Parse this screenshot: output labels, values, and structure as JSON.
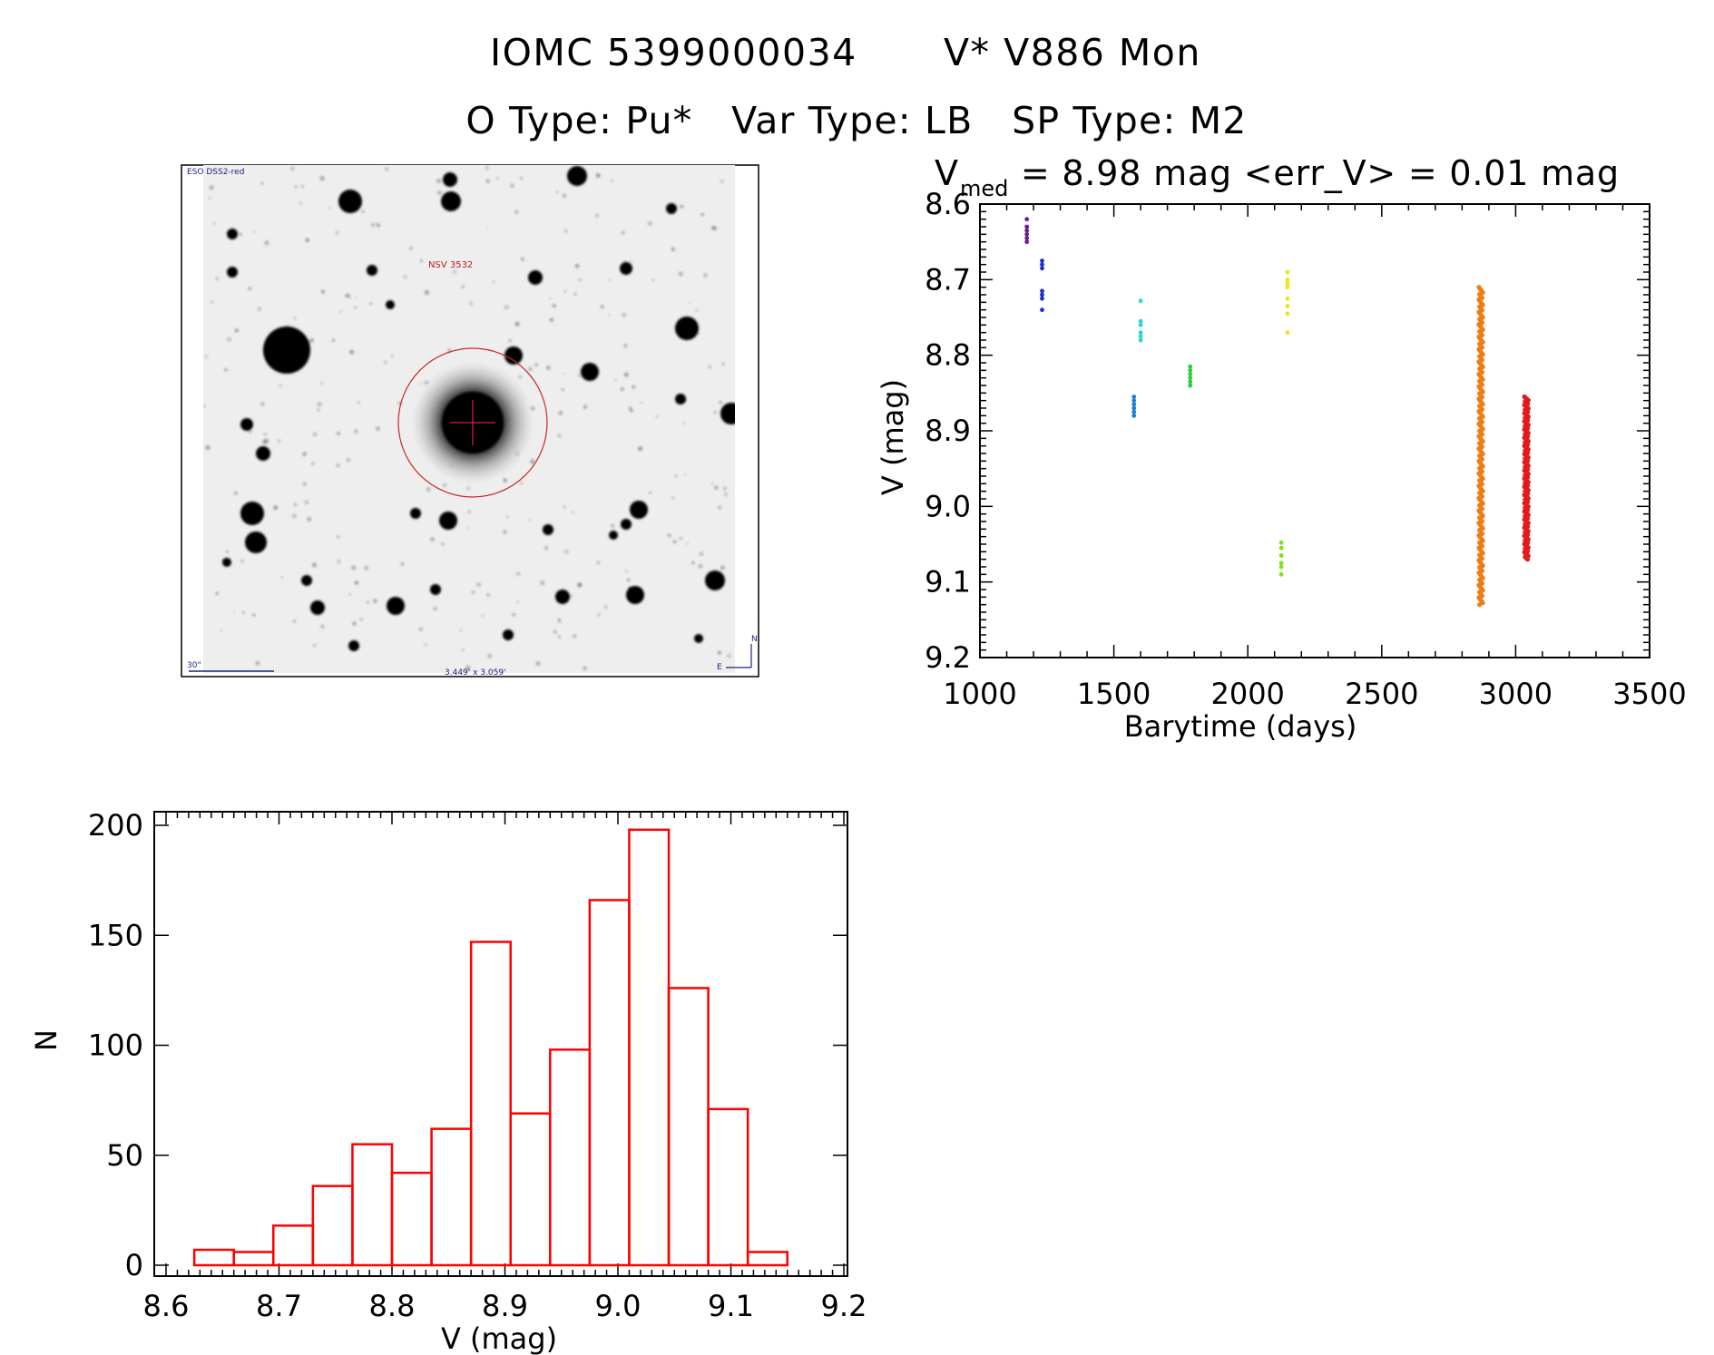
{
  "header": {
    "title_line1_left": "IOMC 5399000034",
    "title_line1_right": "V* V886 Mon",
    "title_line2": "O Type: Pu*   Var Type: LB   SP Type: M2"
  },
  "finder": {
    "survey_label": "ESO DSS2-red",
    "target_label": "NSV 3532",
    "scale_label": "30\"",
    "fov_label": "3.449' x 3.059'",
    "north_label": "N",
    "east_label": "E"
  },
  "chart_data": [
    {
      "type": "scatter",
      "title_prefix": "V",
      "title_sub": "med",
      "title_rest": " = 8.98 mag <err_V> = 0.01 mag",
      "xlabel": "Barytime (days)",
      "ylabel": "V (mag)",
      "xlim": [
        1000,
        3500
      ],
      "ylim": [
        9.2,
        8.6
      ],
      "y_inverted": true,
      "xticks": [
        1000,
        1500,
        2000,
        2500,
        3000,
        3500
      ],
      "yticks": [
        8.6,
        8.7,
        8.8,
        8.9,
        9.0,
        9.1,
        9.2
      ],
      "yticklabels": [
        "8.6",
        "8.7",
        "8.8",
        "8.9",
        "9.0",
        "9.1",
        "9.2"
      ],
      "series": [
        {
          "name": "group1",
          "color": "#6a1b9a",
          "x": [
            1175,
            1175,
            1175,
            1175,
            1175,
            1175
          ],
          "y": [
            8.62,
            8.63,
            8.635,
            8.64,
            8.645,
            8.65
          ]
        },
        {
          "name": "group2",
          "color": "#1f2ed6",
          "x": [
            1232,
            1232,
            1232,
            1232,
            1232,
            1232,
            1232
          ],
          "y": [
            8.675,
            8.68,
            8.685,
            8.715,
            8.72,
            8.725,
            8.74
          ]
        },
        {
          "name": "group3",
          "color": "#1e7fd6",
          "x": [
            1575,
            1575,
            1575,
            1575,
            1575,
            1575
          ],
          "y": [
            8.855,
            8.86,
            8.865,
            8.87,
            8.875,
            8.88
          ]
        },
        {
          "name": "group4",
          "color": "#2ad6d6",
          "x": [
            1600,
            1600,
            1600,
            1600,
            1600,
            1600
          ],
          "y": [
            8.728,
            8.755,
            8.76,
            8.77,
            8.775,
            8.78
          ]
        },
        {
          "name": "group5",
          "color": "#2ecc40",
          "x": [
            1785,
            1785,
            1785,
            1785,
            1785,
            1785,
            1785
          ],
          "y": [
            8.815,
            8.82,
            8.825,
            8.83,
            8.835,
            8.84,
            8.84
          ]
        },
        {
          "name": "group6",
          "color": "#7ee21a",
          "x": [
            2125,
            2125,
            2125,
            2125,
            2125,
            2125
          ],
          "y": [
            9.048,
            9.055,
            9.065,
            9.075,
            9.08,
            9.09
          ]
        },
        {
          "name": "group7",
          "color": "#f1e21a",
          "x": [
            2148,
            2148,
            2148,
            2148,
            2148,
            2148,
            2148,
            2148
          ],
          "y": [
            8.69,
            8.7,
            8.705,
            8.71,
            8.725,
            8.735,
            8.745,
            8.77
          ]
        },
        {
          "name": "group8",
          "color": "#f07c14",
          "x_center": 2870,
          "y_range": [
            8.71,
            9.13
          ],
          "count": 180
        },
        {
          "name": "group9",
          "color": "#e31a1a",
          "x_center": 3040,
          "y_range": [
            8.855,
            9.07
          ],
          "count": 140
        }
      ]
    },
    {
      "type": "bar",
      "style": "histogram-outline",
      "color": "#ff0000",
      "xlabel": "V (mag)",
      "ylabel": "N",
      "xlim": [
        8.6,
        9.2
      ],
      "ylim": [
        0,
        205
      ],
      "xticks": [
        8.6,
        8.7,
        8.8,
        8.9,
        9.0,
        9.1,
        9.2
      ],
      "xticklabels": [
        "8.6",
        "8.7",
        "8.8",
        "8.9",
        "9.0",
        "9.1",
        "9.2"
      ],
      "yticks": [
        0,
        50,
        100,
        150,
        200
      ],
      "yticklabels": [
        "0",
        "50",
        "100",
        "150",
        "200"
      ],
      "bin_start": 8.625,
      "bin_width": 0.035,
      "values": [
        7,
        6,
        18,
        36,
        55,
        42,
        62,
        147,
        69,
        98,
        166,
        198,
        126,
        71,
        6
      ]
    }
  ]
}
